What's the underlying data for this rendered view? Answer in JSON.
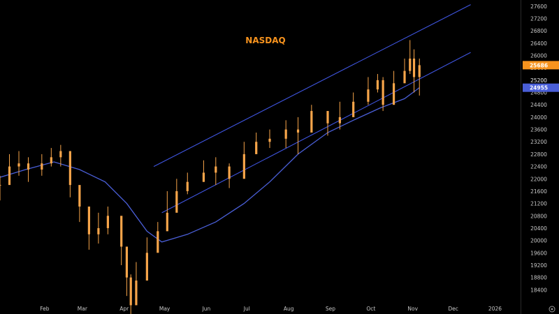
{
  "chart_data": {
    "type": "candlestick",
    "title": "NASDAQ",
    "colors": {
      "background": "#000000",
      "candle": "#f7a54a",
      "moving_average": "#4a5fd8",
      "channel": "#3f55e0",
      "axis_text": "#c8c8c8",
      "title": "#f7931e",
      "last_price_bg": "#f7931e",
      "ma_value_bg": "#4a5fd8"
    },
    "ylim": [
      18000,
      27800
    ],
    "yticks": [
      "27600",
      "27200",
      "26800",
      "26400",
      "26000",
      "25600",
      "25200",
      "24800",
      "24400",
      "24000",
      "23600",
      "23200",
      "22800",
      "22400",
      "22000",
      "21600",
      "21200",
      "20800",
      "20400",
      "20000",
      "19600",
      "19200",
      "18800",
      "18400"
    ],
    "xlabels": [
      {
        "label": "Feb",
        "date": "2025-02-01"
      },
      {
        "label": "Mar",
        "date": "2025-03-01"
      },
      {
        "label": "Apr",
        "date": "2025-04-01"
      },
      {
        "label": "May",
        "date": "2025-05-01"
      },
      {
        "label": "Jun",
        "date": "2025-06-01"
      },
      {
        "label": "Jul",
        "date": "2025-07-01"
      },
      {
        "label": "Aug",
        "date": "2025-08-01"
      },
      {
        "label": "Sep",
        "date": "2025-09-01"
      },
      {
        "label": "Oct",
        "date": "2025-10-01"
      },
      {
        "label": "Nov",
        "date": "2025-11-01"
      },
      {
        "label": "Dec",
        "date": "2025-12-01"
      },
      {
        "label": "2026",
        "date": "2026-01-01"
      }
    ],
    "xlim": [
      "2025-01-01",
      "2026-01-22"
    ],
    "price_series": {
      "dates": [
        "2025-01-01",
        "2025-01-08",
        "2025-01-15",
        "2025-01-22",
        "2025-02-01",
        "2025-02-08",
        "2025-02-15",
        "2025-02-22",
        "2025-03-01",
        "2025-03-08",
        "2025-03-15",
        "2025-03-22",
        "2025-04-01",
        "2025-04-05",
        "2025-04-08",
        "2025-04-12",
        "2025-04-20",
        "2025-04-28",
        "2025-05-05",
        "2025-05-12",
        "2025-05-20",
        "2025-06-01",
        "2025-06-10",
        "2025-06-20",
        "2025-07-01",
        "2025-07-10",
        "2025-07-20",
        "2025-08-01",
        "2025-08-10",
        "2025-08-20",
        "2025-09-01",
        "2025-09-10",
        "2025-09-20",
        "2025-10-01",
        "2025-10-08",
        "2025-10-12",
        "2025-10-20",
        "2025-10-28",
        "2025-11-01",
        "2025-11-04",
        "2025-11-08"
      ],
      "close": [
        21800,
        22400,
        22500,
        22300,
        22500,
        22700,
        22900,
        21800,
        21100,
        20200,
        20400,
        20800,
        19800,
        18800,
        17900,
        18700,
        19600,
        20300,
        20900,
        21600,
        21900,
        22200,
        22400,
        22000,
        22800,
        23200,
        23300,
        23600,
        23500,
        24200,
        23800,
        24000,
        24500,
        24900,
        25200,
        24400,
        25100,
        25500,
        25900,
        25300,
        25686
      ],
      "high": [
        22100,
        22800,
        22900,
        22700,
        22800,
        23000,
        23100,
        22300,
        21500,
        20800,
        20900,
        21100,
        20300,
        19300,
        18900,
        19300,
        20100,
        20600,
        21600,
        22000,
        22200,
        22600,
        22700,
        22500,
        23200,
        23500,
        23600,
        23900,
        24000,
        24400,
        24200,
        24500,
        24800,
        25300,
        25400,
        25300,
        25500,
        25900,
        26500,
        26200,
        25900
      ],
      "low": [
        21300,
        21900,
        22100,
        21900,
        22100,
        22400,
        22400,
        21400,
        20600,
        19700,
        19900,
        20200,
        19200,
        18200,
        17300,
        18100,
        19000,
        19800,
        20400,
        21100,
        21500,
        21900,
        21800,
        21700,
        22300,
        22800,
        23000,
        23000,
        22800,
        23700,
        23400,
        23600,
        24100,
        24400,
        24800,
        24200,
        24700,
        25100,
        25400,
        24800,
        24700
      ]
    },
    "moving_average": {
      "dates": [
        "2025-01-01",
        "2025-01-20",
        "2025-02-10",
        "2025-03-01",
        "2025-03-20",
        "2025-04-05",
        "2025-04-20",
        "2025-05-01",
        "2025-05-20",
        "2025-06-10",
        "2025-07-01",
        "2025-07-20",
        "2025-08-10",
        "2025-09-01",
        "2025-09-20",
        "2025-10-10",
        "2025-10-28",
        "2025-11-08"
      ],
      "values": [
        22050,
        22300,
        22550,
        22300,
        21900,
        21200,
        20300,
        19950,
        20200,
        20600,
        21200,
        21900,
        22800,
        23500,
        23900,
        24300,
        24600,
        24955
      ]
    },
    "channel_upper": [
      {
        "date": "2025-04-25",
        "value": 22400
      },
      {
        "date": "2025-12-16",
        "value": 27650
      }
    ],
    "channel_lower": [
      {
        "date": "2025-05-01",
        "value": 20900
      },
      {
        "date": "2025-12-16",
        "value": 26100
      }
    ],
    "last_price": "25686",
    "ma_value": "24955",
    "extra_tick": "25200"
  }
}
